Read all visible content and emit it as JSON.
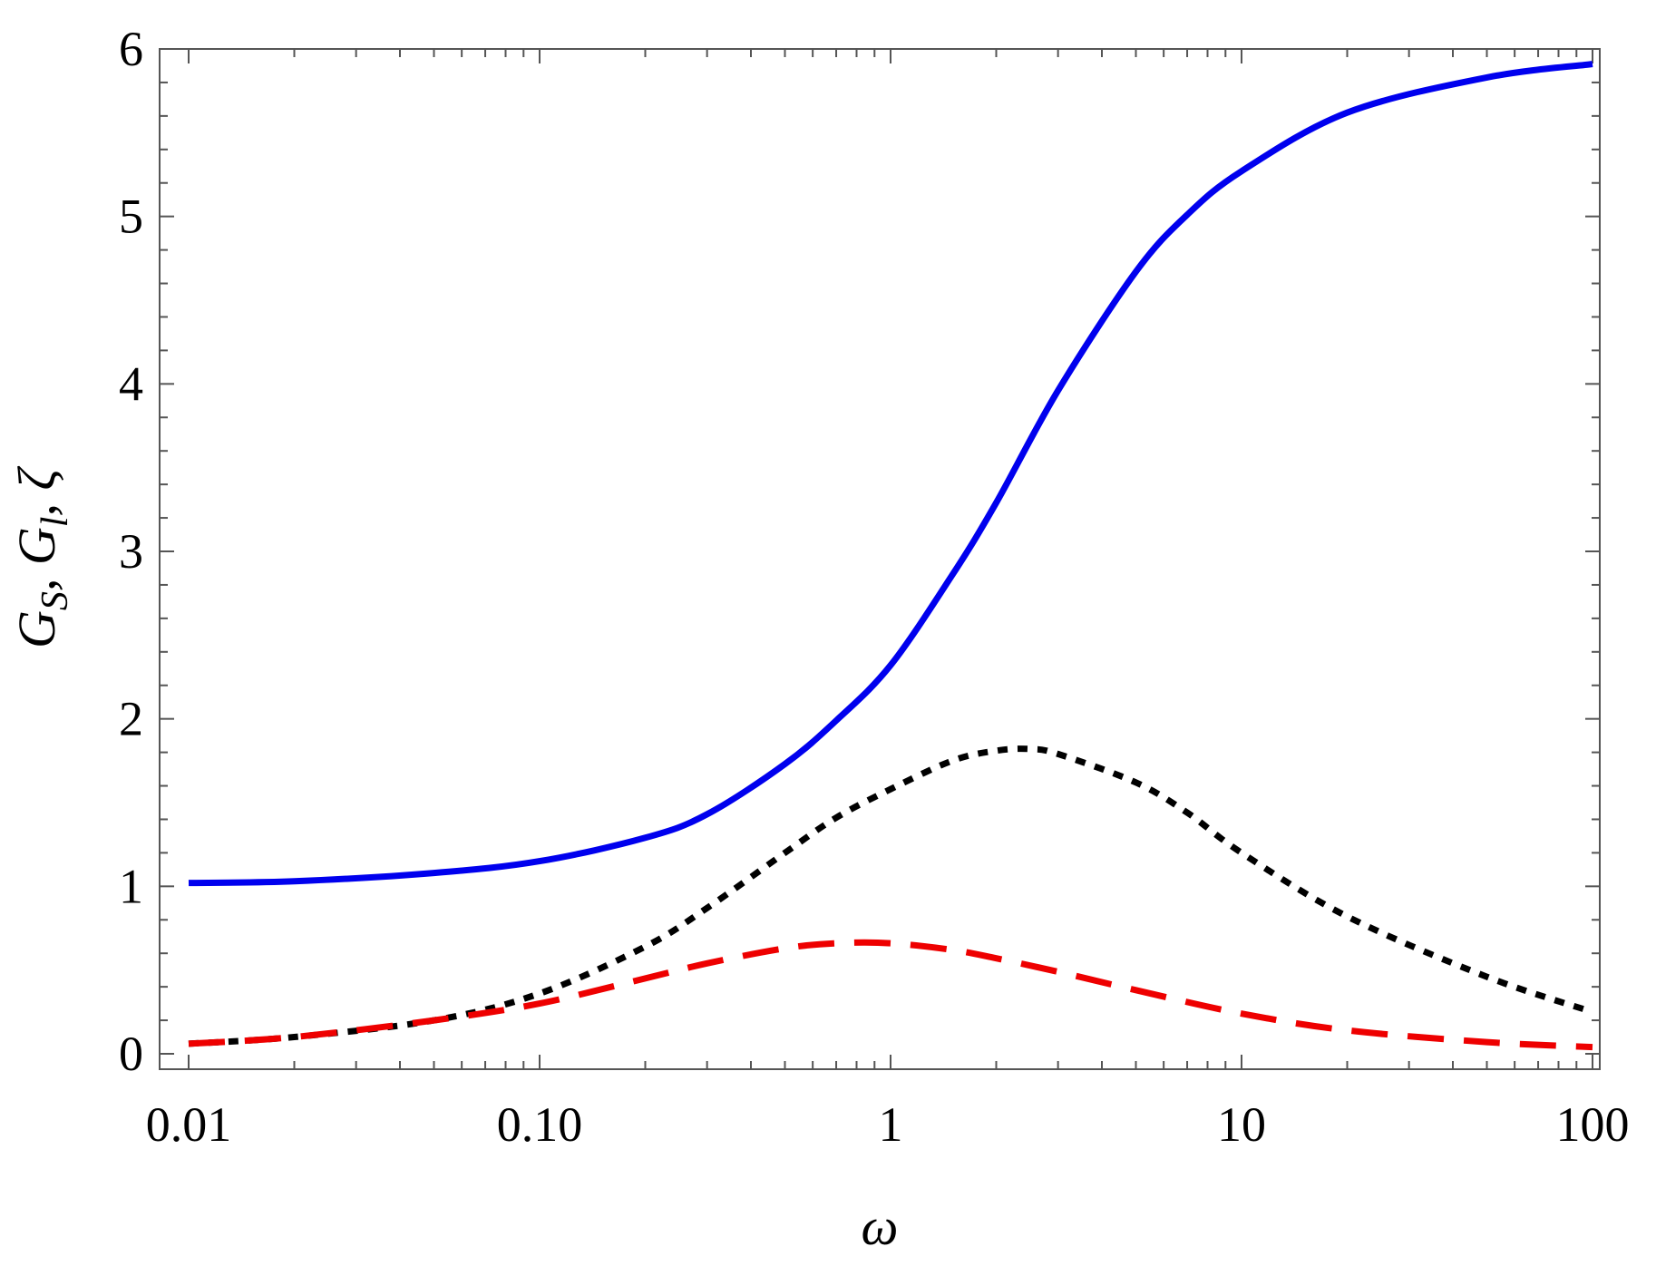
{
  "chart_data": {
    "type": "line",
    "xlabel": "ω",
    "ylabel": "G_S, G_l, ζ",
    "xscale": "log",
    "xlim": [
      0.01,
      100
    ],
    "ylim": [
      0,
      6
    ],
    "x_ticks": [
      0.01,
      0.1,
      1,
      10,
      100
    ],
    "x_tick_labels": [
      "0.01",
      "0.10",
      "1",
      "10",
      "100"
    ],
    "y_ticks": [
      0,
      1,
      2,
      3,
      4,
      5,
      6
    ],
    "y_tick_labels": [
      "0",
      "1",
      "2",
      "3",
      "4",
      "5",
      "6"
    ],
    "grid": false,
    "legend": "none",
    "series": [
      {
        "style": "solid",
        "color": "#0000ee",
        "x": [
          0.01,
          0.02,
          0.05,
          0.1,
          0.2,
          0.3,
          0.5,
          0.7,
          1,
          1.5,
          2,
          3,
          5,
          7,
          10,
          20,
          50,
          100
        ],
        "y": [
          1.02,
          1.03,
          1.08,
          1.15,
          1.29,
          1.43,
          1.73,
          1.99,
          2.32,
          2.86,
          3.29,
          3.96,
          4.67,
          5.01,
          5.27,
          5.62,
          5.83,
          5.91
        ]
      },
      {
        "style": "dotted",
        "color": "#000000",
        "x": [
          0.01,
          0.02,
          0.05,
          0.1,
          0.2,
          0.3,
          0.5,
          0.7,
          1,
          1.5,
          2,
          2.5,
          3,
          5,
          7,
          10,
          20,
          50,
          100
        ],
        "y": [
          0.06,
          0.1,
          0.2,
          0.36,
          0.64,
          0.87,
          1.2,
          1.41,
          1.58,
          1.75,
          1.81,
          1.82,
          1.79,
          1.62,
          1.44,
          1.2,
          0.82,
          0.46,
          0.25
        ]
      },
      {
        "style": "dashed",
        "color": "#ee0000",
        "x": [
          0.01,
          0.02,
          0.05,
          0.1,
          0.2,
          0.3,
          0.5,
          0.7,
          1,
          1.5,
          2,
          3,
          5,
          10,
          20,
          50,
          100
        ],
        "y": [
          0.06,
          0.1,
          0.2,
          0.3,
          0.45,
          0.54,
          0.63,
          0.66,
          0.66,
          0.62,
          0.57,
          0.49,
          0.38,
          0.24,
          0.14,
          0.07,
          0.04
        ]
      }
    ]
  }
}
